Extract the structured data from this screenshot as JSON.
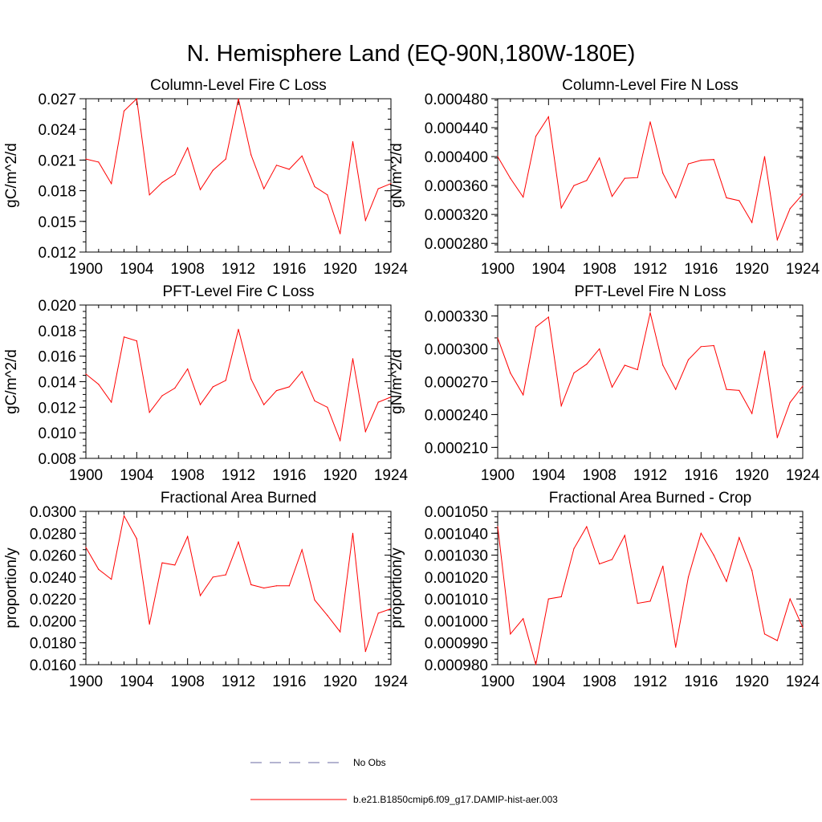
{
  "figure": {
    "title": "N. Hemisphere Land (EQ-90N,180W-180E)"
  },
  "legend": {
    "items": [
      {
        "label": "No Obs",
        "style": "dashed",
        "color": "#6a6aa0"
      },
      {
        "label": "b.e21.B1850cmip6.f09_g17.DAMIP-hist-aer.003",
        "style": "solid",
        "color": "#ff0000"
      }
    ]
  },
  "chart_data": [
    {
      "type": "line",
      "title": "Column-Level Fire C Loss",
      "ylabel": "gC/m^2/d",
      "xlabel": "",
      "xlim": [
        1900,
        1924
      ],
      "ylim": [
        0.012,
        0.027
      ],
      "xticks": [
        "1900",
        "1904",
        "1908",
        "1912",
        "1916",
        "1920",
        "1924"
      ],
      "yticks": [
        "0.012",
        "0.015",
        "0.018",
        "0.021",
        "0.024",
        "0.027"
      ],
      "yticks_values": [
        0.012,
        0.015,
        0.018,
        0.021,
        0.024,
        0.027
      ],
      "y_minor_step": 0.001,
      "series": [
        {
          "color": "#ff0000",
          "x": [
            1900,
            1901,
            1902,
            1903,
            1904,
            1905,
            1906,
            1907,
            1908,
            1909,
            1910,
            1911,
            1912,
            1913,
            1914,
            1915,
            1916,
            1917,
            1918,
            1919,
            1920,
            1921,
            1922,
            1923,
            1924
          ],
          "y": [
            0.0211,
            0.0208,
            0.0187,
            0.0258,
            0.027,
            0.0176,
            0.0188,
            0.0196,
            0.0222,
            0.0181,
            0.02,
            0.0211,
            0.027,
            0.0215,
            0.0182,
            0.0205,
            0.0201,
            0.0214,
            0.0184,
            0.0176,
            0.0138,
            0.0228,
            0.0151,
            0.0182,
            0.0187
          ]
        }
      ]
    },
    {
      "type": "line",
      "title": "Column-Level Fire N Loss",
      "ylabel": "gN/m^2/d",
      "xlabel": "",
      "xlim": [
        1900,
        1924
      ],
      "ylim": [
        0.000268,
        0.00048
      ],
      "xticks": [
        "1900",
        "1904",
        "1908",
        "1912",
        "1916",
        "1920",
        "1924"
      ],
      "yticks": [
        "0.000280",
        "0.000320",
        "0.000360",
        "0.000400",
        "0.000440",
        "0.000480"
      ],
      "yticks_values": [
        0.00028,
        0.00032,
        0.00036,
        0.0004,
        0.00044,
        0.00048
      ],
      "y_minor_step": 1e-05,
      "series": [
        {
          "color": "#ff0000",
          "x": [
            1900,
            1901,
            1902,
            1903,
            1904,
            1905,
            1906,
            1907,
            1908,
            1909,
            1910,
            1911,
            1912,
            1913,
            1914,
            1915,
            1916,
            1917,
            1918,
            1919,
            1920,
            1921,
            1922,
            1923,
            1924
          ],
          "y": [
            0.0004,
            0.00037,
            0.000344,
            0.000428,
            0.000455,
            0.000329,
            0.00036,
            0.000367,
            0.000398,
            0.000345,
            0.00037,
            0.000371,
            0.000448,
            0.000377,
            0.000343,
            0.00039,
            0.000395,
            0.000396,
            0.000343,
            0.000339,
            0.000309,
            0.0004,
            0.000285,
            0.000328,
            0.000348
          ]
        }
      ]
    },
    {
      "type": "line",
      "title": "PFT-Level Fire C Loss",
      "ylabel": "gC/m^2/d",
      "xlabel": "",
      "xlim": [
        1900,
        1924
      ],
      "ylim": [
        0.008,
        0.02
      ],
      "xticks": [
        "1900",
        "1904",
        "1908",
        "1912",
        "1916",
        "1920",
        "1924"
      ],
      "yticks": [
        "0.008",
        "0.010",
        "0.012",
        "0.014",
        "0.016",
        "0.018",
        "0.020"
      ],
      "yticks_values": [
        0.008,
        0.01,
        0.012,
        0.014,
        0.016,
        0.018,
        0.02
      ],
      "y_minor_step": 0.0005,
      "series": [
        {
          "color": "#ff0000",
          "x": [
            1900,
            1901,
            1902,
            1903,
            1904,
            1905,
            1906,
            1907,
            1908,
            1909,
            1910,
            1911,
            1912,
            1913,
            1914,
            1915,
            1916,
            1917,
            1918,
            1919,
            1920,
            1921,
            1922,
            1923,
            1924
          ],
          "y": [
            0.0146,
            0.0138,
            0.0124,
            0.0175,
            0.0172,
            0.0116,
            0.0129,
            0.0135,
            0.015,
            0.0122,
            0.0136,
            0.0141,
            0.0181,
            0.0142,
            0.0122,
            0.0133,
            0.0136,
            0.0148,
            0.0125,
            0.012,
            0.0094,
            0.0158,
            0.0101,
            0.0124,
            0.0128
          ]
        }
      ]
    },
    {
      "type": "line",
      "title": "PFT-Level Fire N Loss",
      "ylabel": "gN/m^2/d",
      "xlabel": "",
      "xlim": [
        1900,
        1924
      ],
      "ylim": [
        0.0002,
        0.00034
      ],
      "xticks": [
        "1900",
        "1904",
        "1908",
        "1912",
        "1916",
        "1920",
        "1924"
      ],
      "yticks": [
        "0.000210",
        "0.000240",
        "0.000270",
        "0.000300",
        "0.000330"
      ],
      "yticks_values": [
        0.00021,
        0.00024,
        0.00027,
        0.0003,
        0.00033
      ],
      "y_minor_step": 1e-05,
      "series": [
        {
          "color": "#ff0000",
          "x": [
            1900,
            1901,
            1902,
            1903,
            1904,
            1905,
            1906,
            1907,
            1908,
            1909,
            1910,
            1911,
            1912,
            1913,
            1914,
            1915,
            1916,
            1917,
            1918,
            1919,
            1920,
            1921,
            1922,
            1923,
            1924
          ],
          "y": [
            0.00031,
            0.000278,
            0.000258,
            0.00032,
            0.000329,
            0.000248,
            0.000278,
            0.000286,
            0.0003,
            0.000265,
            0.000285,
            0.000281,
            0.000333,
            0.000285,
            0.000263,
            0.00029,
            0.000302,
            0.000303,
            0.000263,
            0.000262,
            0.000241,
            0.000298,
            0.000219,
            0.000251,
            0.000266
          ]
        }
      ]
    },
    {
      "type": "line",
      "title": "Fractional Area Burned",
      "ylabel": "proportion/y",
      "xlabel": "",
      "xlim": [
        1900,
        1924
      ],
      "ylim": [
        0.016,
        0.03
      ],
      "xticks": [
        "1900",
        "1904",
        "1908",
        "1912",
        "1916",
        "1920",
        "1924"
      ],
      "yticks": [
        "0.0160",
        "0.0180",
        "0.0200",
        "0.0220",
        "0.0240",
        "0.0260",
        "0.0280",
        "0.0300"
      ],
      "yticks_values": [
        0.016,
        0.018,
        0.02,
        0.022,
        0.024,
        0.026,
        0.028,
        0.03
      ],
      "y_minor_step": 0.0005,
      "series": [
        {
          "color": "#ff0000",
          "x": [
            1900,
            1901,
            1902,
            1903,
            1904,
            1905,
            1906,
            1907,
            1908,
            1909,
            1910,
            1911,
            1912,
            1913,
            1914,
            1915,
            1916,
            1917,
            1918,
            1919,
            1920,
            1921,
            1922,
            1923,
            1924
          ],
          "y": [
            0.0267,
            0.0247,
            0.0238,
            0.0296,
            0.0275,
            0.0197,
            0.0253,
            0.0251,
            0.0277,
            0.0223,
            0.024,
            0.0242,
            0.0272,
            0.0233,
            0.023,
            0.0232,
            0.0232,
            0.0265,
            0.0219,
            0.0205,
            0.019,
            0.028,
            0.0172,
            0.0207,
            0.0211
          ]
        }
      ]
    },
    {
      "type": "line",
      "title": "Fractional Area Burned - Crop",
      "ylabel": "proportion/y",
      "xlabel": "",
      "xlim": [
        1900,
        1924
      ],
      "ylim": [
        0.00098,
        0.00105
      ],
      "xticks": [
        "1900",
        "1904",
        "1908",
        "1912",
        "1916",
        "1920",
        "1924"
      ],
      "yticks": [
        "0.000980",
        "0.000990",
        "0.001000",
        "0.001010",
        "0.001020",
        "0.001030",
        "0.001040",
        "0.001050"
      ],
      "yticks_values": [
        0.00098,
        0.00099,
        0.001,
        0.00101,
        0.00102,
        0.00103,
        0.00104,
        0.00105
      ],
      "y_minor_step": 2.5e-06,
      "series": [
        {
          "color": "#ff0000",
          "x": [
            1900,
            1901,
            1902,
            1903,
            1904,
            1905,
            1906,
            1907,
            1908,
            1909,
            1910,
            1911,
            1912,
            1913,
            1914,
            1915,
            1916,
            1917,
            1918,
            1919,
            1920,
            1921,
            1922,
            1923,
            1924
          ],
          "y": [
            0.001043,
            0.000994,
            0.001001,
            0.00098,
            0.00101,
            0.001011,
            0.001033,
            0.001043,
            0.001026,
            0.001028,
            0.001039,
            0.001008,
            0.001009,
            0.001025,
            0.000988,
            0.00102,
            0.00104,
            0.00103,
            0.001018,
            0.001038,
            0.001023,
            0.000994,
            0.000991,
            0.00101,
            0.000997
          ]
        }
      ]
    }
  ]
}
